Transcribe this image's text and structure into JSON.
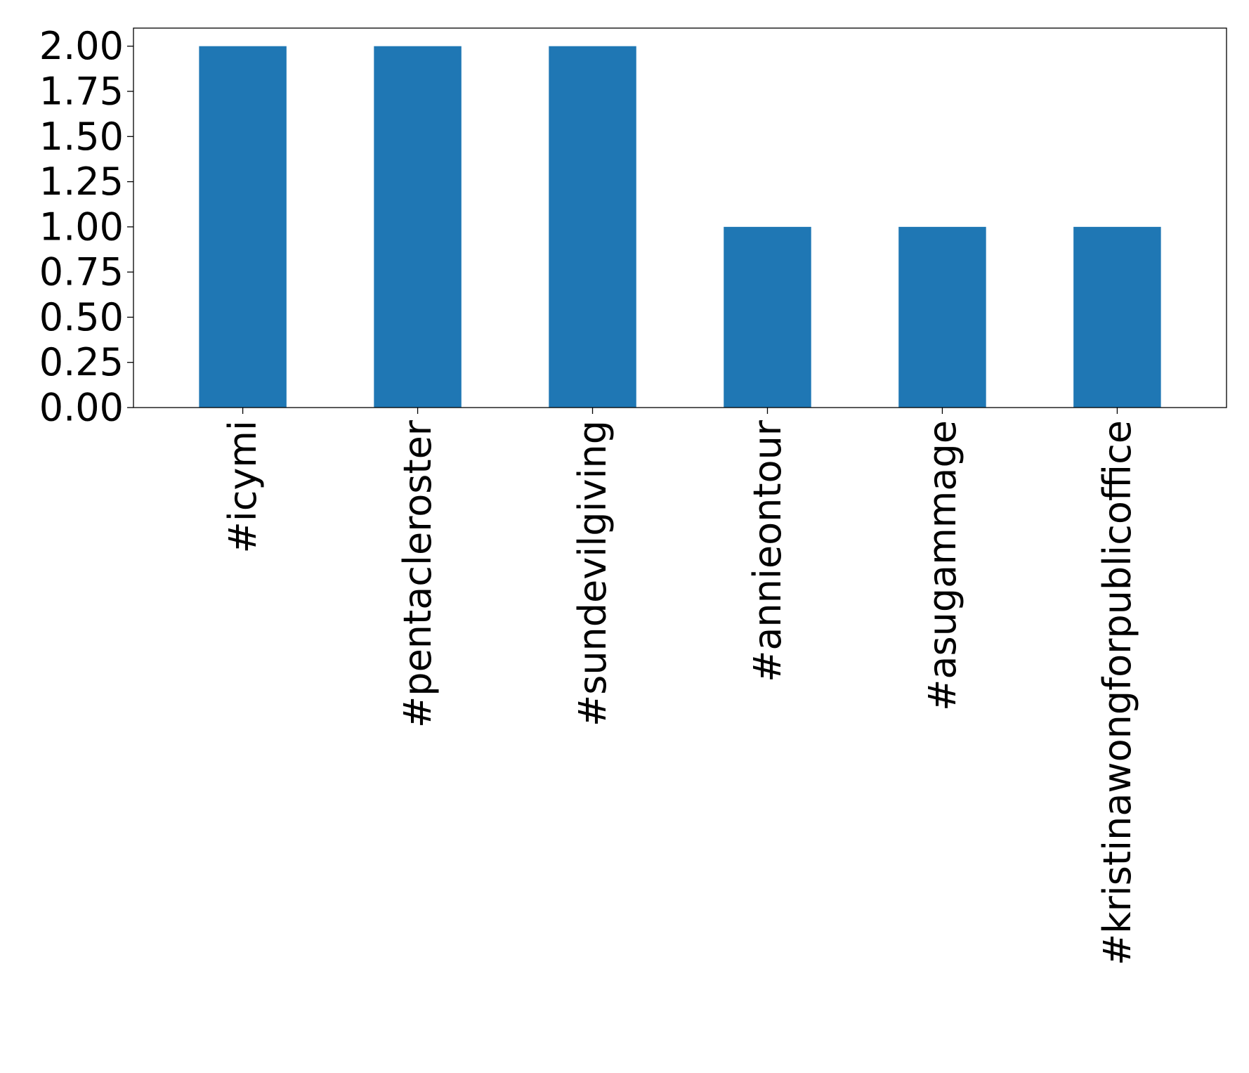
{
  "chart_data": {
    "type": "bar",
    "categories": [
      "#icymi",
      "#pentacleroster",
      "#sundevilgiving",
      "#annieontour",
      "#asugammage",
      "#kristinawongforpublicoffice"
    ],
    "values": [
      2,
      2,
      2,
      1,
      1,
      1
    ],
    "yticks": [
      "0.00",
      "0.25",
      "0.50",
      "0.75",
      "1.00",
      "1.25",
      "1.50",
      "1.75",
      "2.00"
    ],
    "ylim": [
      0,
      2.1
    ],
    "xlabel": "",
    "ylabel": "",
    "title": "",
    "grid": false,
    "legend": "none",
    "bar_color": "#1f77b4"
  }
}
